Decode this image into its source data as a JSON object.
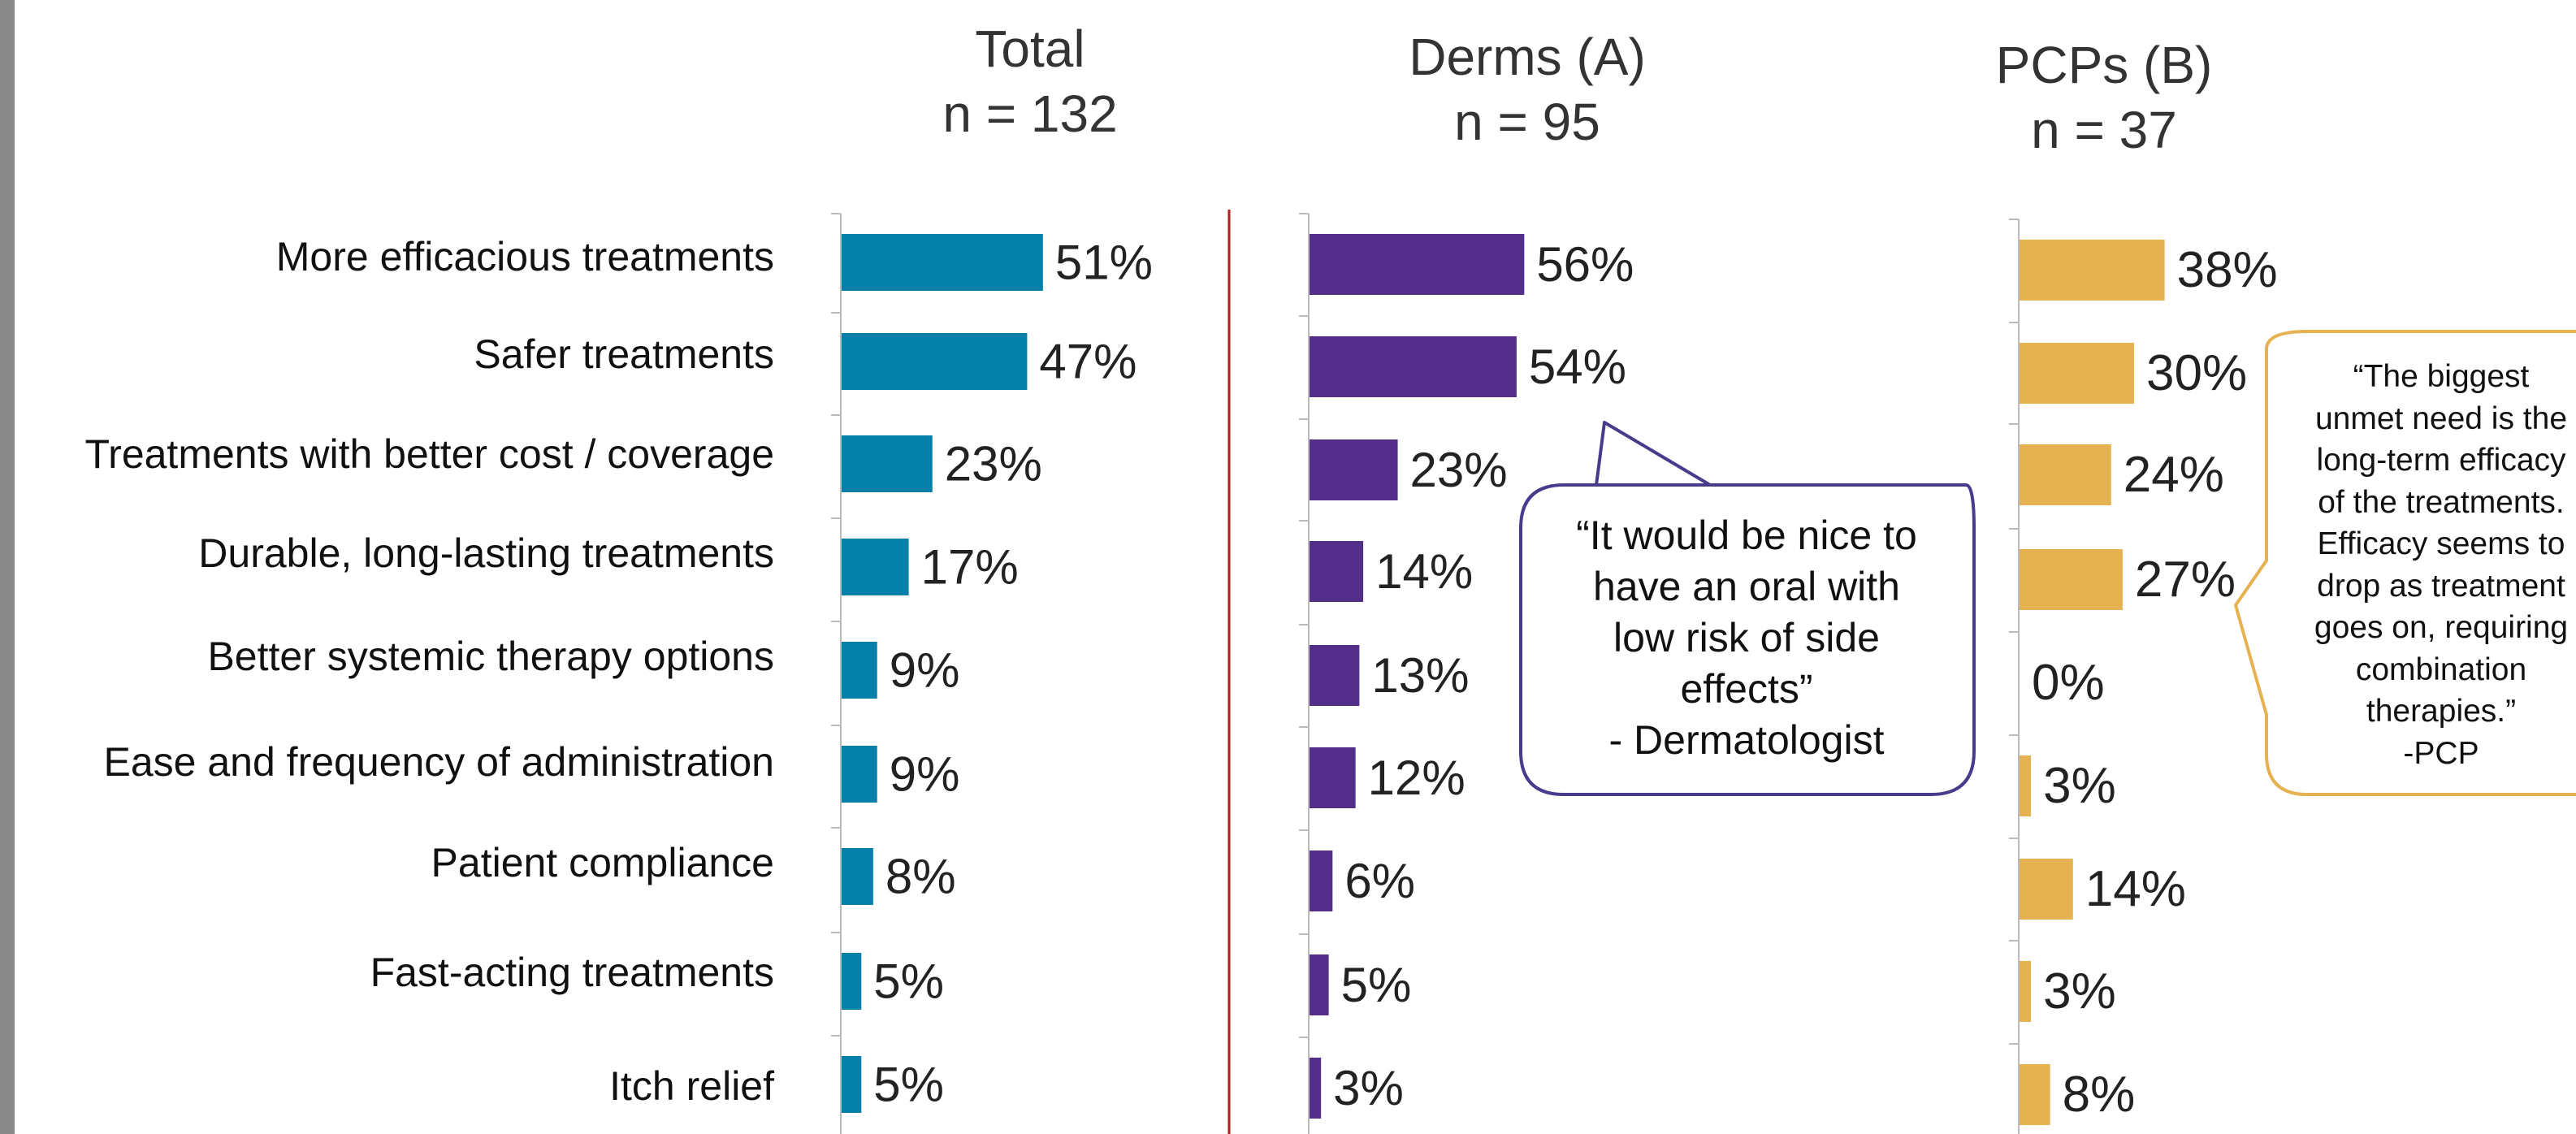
{
  "chart_data": {
    "type": "bar",
    "orientation": "horizontal",
    "categories": [
      "More efficacious treatments",
      "Safer treatments",
      "Treatments with better cost / coverage",
      "Durable, long-lasting treatments",
      "Better systemic therapy options",
      "Ease and frequency of administration",
      "Patient compliance",
      "Fast-acting treatments",
      "Itch relief"
    ],
    "series": [
      {
        "name": "Total",
        "subtitle": "n = 132",
        "color": "#0580ab",
        "values": [
          51,
          47,
          23,
          17,
          9,
          9,
          8,
          5,
          5
        ]
      },
      {
        "name": "Derms (A)",
        "subtitle": "n = 95",
        "color": "#542f8a",
        "values": [
          56,
          54,
          23,
          14,
          13,
          12,
          6,
          5,
          3
        ]
      },
      {
        "name": "PCPs (B)",
        "subtitle": "n = 37",
        "color": "#e6b251",
        "values": [
          38,
          30,
          24,
          27,
          0,
          3,
          14,
          3,
          8
        ]
      }
    ],
    "value_suffix": "%",
    "annotations": [
      {
        "series": "Derms (A)",
        "lines": [
          "“It would be nice to",
          "have an oral with",
          "low risk of side",
          "effects”",
          "- Dermatologist"
        ]
      },
      {
        "series": "PCPs (B)",
        "lines": [
          "“The biggest",
          "unmet need is the",
          "long-term efficacy",
          "of the treatments.",
          "Efficacy seems to",
          "drop as treatment",
          "goes on, requiring",
          "combination",
          "therapies.”",
          "-PCP"
        ]
      }
    ]
  },
  "colors": {
    "separator": "#a32222",
    "axis": "#bbbbbb",
    "callout_derms": "#4a3a8c",
    "callout_pcps": "#e6b251"
  }
}
